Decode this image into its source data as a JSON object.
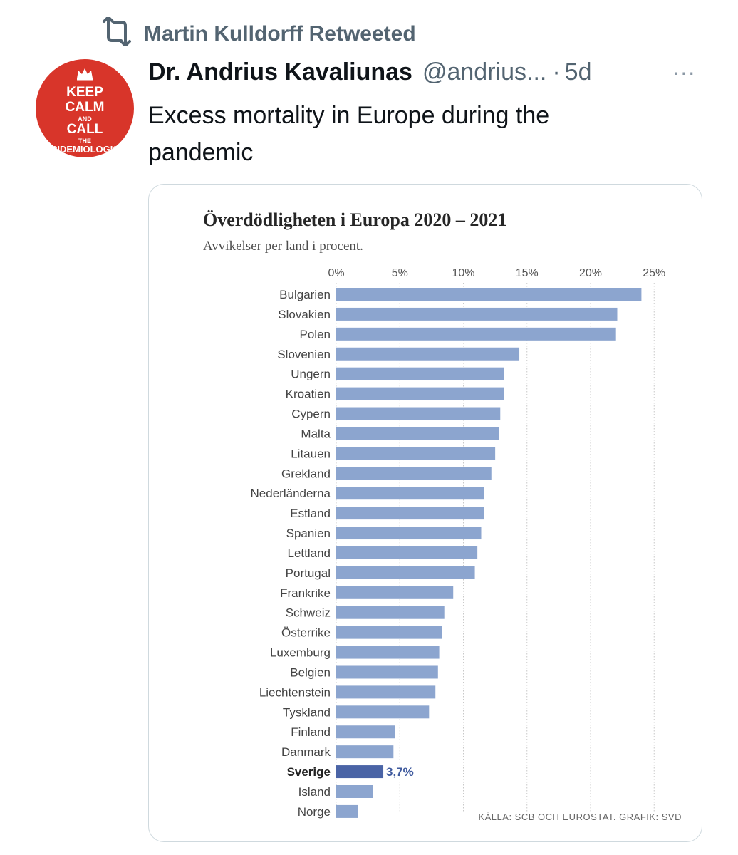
{
  "retweet": {
    "text": "Martin Kulldorff Retweeted"
  },
  "avatar": {
    "lines": [
      "KEEP",
      "CALM",
      "AND",
      "CALL",
      "THE",
      "EPIDEMIOLOGIST"
    ]
  },
  "tweet": {
    "author_name": "Dr. Andrius Kavaliunas",
    "handle": "@andrius...",
    "separator": "·",
    "time": "5d",
    "more": "···",
    "text": "Excess mortality in Europe during the pandemic"
  },
  "colors": {
    "bar": "#8ca5cf",
    "highlight": "#4a64a6",
    "grid": "#c8c8c8",
    "avatar": "#d8352a"
  },
  "chart_data": {
    "type": "bar",
    "orientation": "horizontal",
    "title": "Överdödligheten i Europa 2020 – 2021",
    "subtitle": "Avvikelser per land i procent.",
    "xlim": [
      0,
      25
    ],
    "xticks": [
      0,
      5,
      10,
      15,
      20,
      25
    ],
    "xtick_labels": [
      "0%",
      "5%",
      "10%",
      "15%",
      "20%",
      "25%"
    ],
    "grid": true,
    "categories": [
      "Bulgarien",
      "Slovakien",
      "Polen",
      "Slovenien",
      "Ungern",
      "Kroatien",
      "Cypern",
      "Malta",
      "Litauen",
      "Grekland",
      "Nederländerna",
      "Estland",
      "Spanien",
      "Lettland",
      "Portugal",
      "Frankrike",
      "Schweiz",
      "Österrike",
      "Luxemburg",
      "Belgien",
      "Liechtenstein",
      "Tyskland",
      "Finland",
      "Danmark",
      "Sverige",
      "Island",
      "Norge"
    ],
    "values": [
      24.0,
      22.1,
      22.0,
      14.4,
      13.2,
      13.2,
      12.9,
      12.8,
      12.5,
      12.2,
      11.6,
      11.6,
      11.4,
      11.1,
      10.9,
      9.2,
      8.5,
      8.3,
      8.1,
      8.0,
      7.8,
      7.3,
      4.6,
      4.5,
      3.7,
      2.9,
      1.7
    ],
    "highlight": "Sverige",
    "highlight_label": "3,7%",
    "source": "KÄLLA: SCB OCH EUROSTAT. GRAFIK: SVD"
  }
}
